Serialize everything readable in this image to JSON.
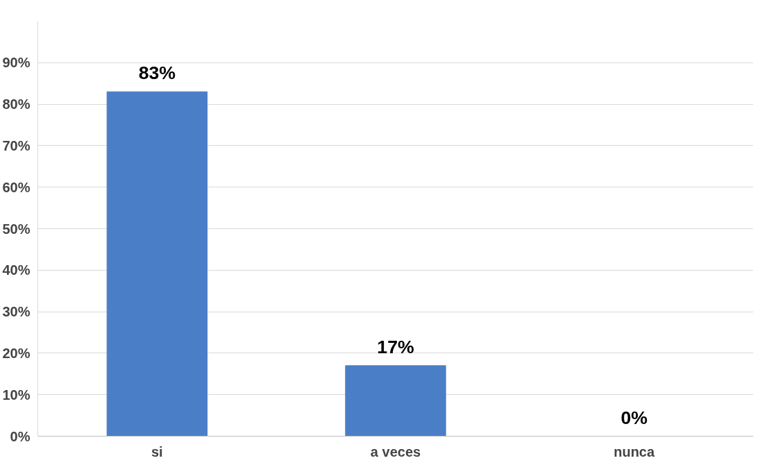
{
  "chart_data": {
    "type": "bar",
    "categories": [
      "si",
      "a veces",
      "nunca"
    ],
    "values": [
      83,
      17,
      0
    ],
    "color": "#4a7fc8",
    "ylim": [
      0,
      100
    ],
    "yticks": [
      {
        "value": 0,
        "label": "0%"
      },
      {
        "value": 10,
        "label": "10%"
      },
      {
        "value": 20,
        "label": "20%"
      },
      {
        "value": 30,
        "label": "30%"
      },
      {
        "value": 40,
        "label": "40%"
      },
      {
        "value": 50,
        "label": "50%"
      },
      {
        "value": 60,
        "label": "60%"
      },
      {
        "value": 70,
        "label": "70%"
      },
      {
        "value": 80,
        "label": "80%"
      },
      {
        "value": 90,
        "label": "90%"
      }
    ],
    "value_labels": [
      "83%",
      "17%",
      "0%"
    ],
    "grid": "y"
  }
}
